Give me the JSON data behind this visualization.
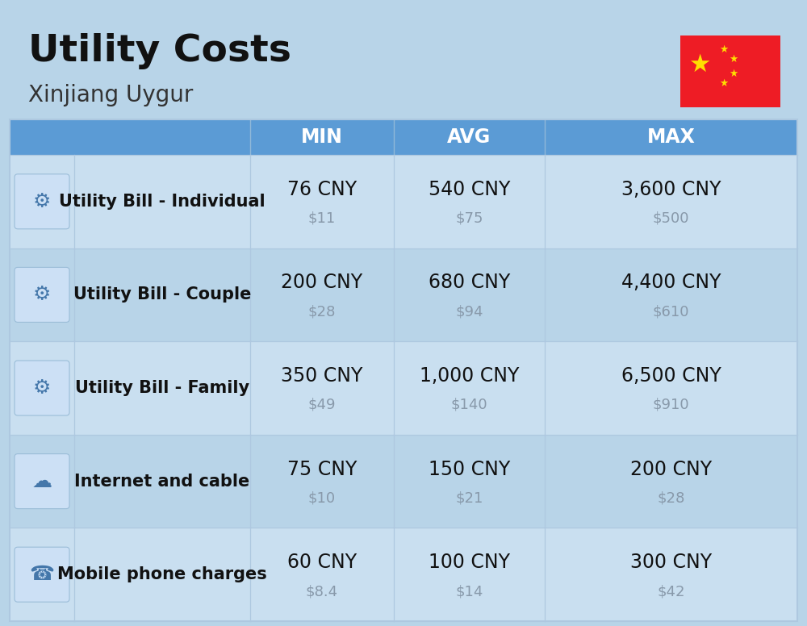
{
  "title": "Utility Costs",
  "subtitle": "Xinjiang Uygur",
  "background_color": "#b8d4e8",
  "header_color": "#5b9bd5",
  "header_text_color": "#ffffff",
  "row_colors": [
    "#c9dff0",
    "#b8d4e8"
  ],
  "col_separator_color": "#aec8e0",
  "rows": [
    {
      "label": "Utility Bill - Individual",
      "min_cny": "76 CNY",
      "min_usd": "$11",
      "avg_cny": "540 CNY",
      "avg_usd": "$75",
      "max_cny": "3,600 CNY",
      "max_usd": "$500"
    },
    {
      "label": "Utility Bill - Couple",
      "min_cny": "200 CNY",
      "min_usd": "$28",
      "avg_cny": "680 CNY",
      "avg_usd": "$94",
      "max_cny": "4,400 CNY",
      "max_usd": "$610"
    },
    {
      "label": "Utility Bill - Family",
      "min_cny": "350 CNY",
      "min_usd": "$49",
      "avg_cny": "1,000 CNY",
      "avg_usd": "$140",
      "max_cny": "6,500 CNY",
      "max_usd": "$910"
    },
    {
      "label": "Internet and cable",
      "min_cny": "75 CNY",
      "min_usd": "$10",
      "avg_cny": "150 CNY",
      "avg_usd": "$21",
      "max_cny": "200 CNY",
      "max_usd": "$28"
    },
    {
      "label": "Mobile phone charges",
      "min_cny": "60 CNY",
      "min_usd": "$8.4",
      "avg_cny": "100 CNY",
      "avg_usd": "$14",
      "max_cny": "300 CNY",
      "max_usd": "$42"
    }
  ],
  "title_fontsize": 34,
  "subtitle_fontsize": 20,
  "header_fontsize": 17,
  "label_fontsize": 15,
  "value_fontsize": 17,
  "usd_fontsize": 13,
  "usd_color": "#8899aa",
  "label_color": "#111111",
  "value_color": "#111111",
  "flag_color": "#EE1C25",
  "star_color": "#FFDE00"
}
